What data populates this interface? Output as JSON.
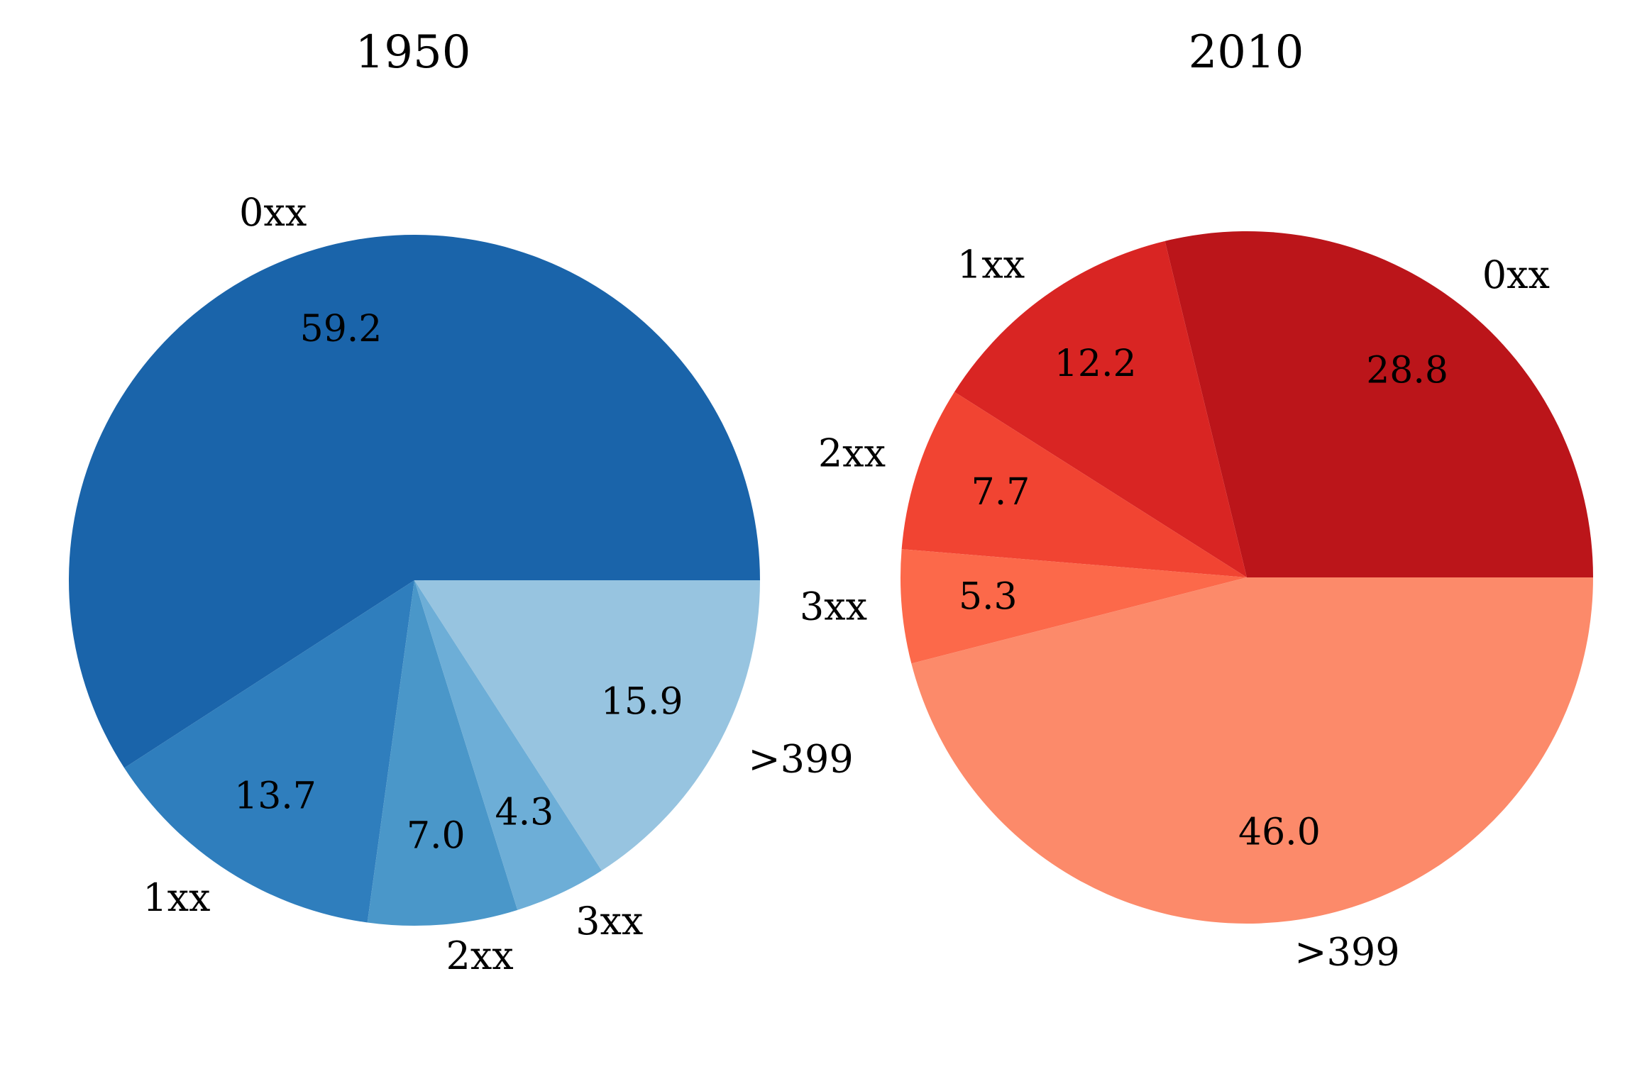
{
  "chart_data": [
    {
      "type": "pie",
      "title": "1950",
      "start_angle_deg": 0,
      "direction": "counterclockwise",
      "slices": [
        {
          "label": "0xx",
          "value": 59.2,
          "value_label": "59.2",
          "color": "#1a64aa"
        },
        {
          "label": "1xx",
          "value": 13.7,
          "value_label": "13.7",
          "color": "#2f7ebd"
        },
        {
          "label": "2xx",
          "value": 7.0,
          "value_label": "7.0",
          "color": "#4a97c9"
        },
        {
          "label": "3xx",
          "value": 4.3,
          "value_label": "4.3",
          "color": "#6daed7"
        },
        {
          "label": ">399",
          "value": 15.9,
          "value_label": "15.9",
          "color": "#97c4e0"
        }
      ]
    },
    {
      "type": "pie",
      "title": "2010",
      "start_angle_deg": 0,
      "direction": "counterclockwise",
      "slices": [
        {
          "label": "0xx",
          "value": 28.8,
          "value_label": "28.8",
          "color": "#bb151a"
        },
        {
          "label": "1xx",
          "value": 12.2,
          "value_label": "12.2",
          "color": "#d92523"
        },
        {
          "label": "2xx",
          "value": 7.7,
          "value_label": "7.7",
          "color": "#f14432"
        },
        {
          "label": "3xx",
          "value": 5.3,
          "value_label": "5.3",
          "color": "#fc694a"
        },
        {
          "label": ">399",
          "value": 46.0,
          "value_label": "46.0",
          "color": "#fc8a6a"
        }
      ]
    }
  ]
}
